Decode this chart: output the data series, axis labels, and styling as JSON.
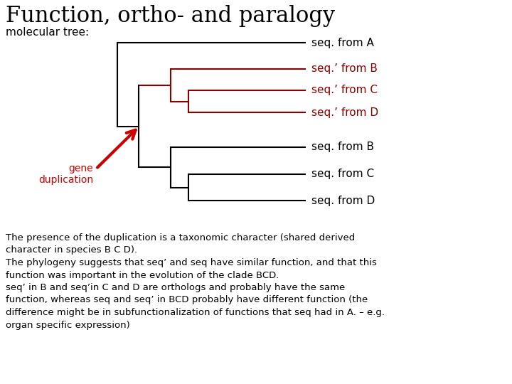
{
  "title": "Function, ortho- and paralogy",
  "subtitle": "molecular tree:",
  "background_color": "#ffffff",
  "title_fontsize": 22,
  "subtitle_fontsize": 11,
  "leaf_labels": [
    {
      "text": "seq. from A",
      "color": "#000000"
    },
    {
      "text": "seq.’ from B",
      "color": "#880000"
    },
    {
      "text": "seq.’ from C",
      "color": "#880000"
    },
    {
      "text": "seq.’ from D",
      "color": "#880000"
    },
    {
      "text": "seq. from B",
      "color": "#000000"
    },
    {
      "text": "seq. from C",
      "color": "#000000"
    },
    {
      "text": "seq. from D",
      "color": "#000000"
    }
  ],
  "body_text": "The presence of the duplication is a taxonomic character (shared derived\ncharacter in species B C D).\nThe phylogeny suggests that seq’ and seq have similar function, and that this\nfunction was important in the evolution of the clade BCD.\nseq’ in B and seq’in C and D are orthologs and probably have the same\nfunction, whereas seq and seq’ in BCD probably have different function (the\ndifference might be in subfunctionalization of functions that seq had in A. – e.g.\norgan specific expression)",
  "body_fontsize": 9.5,
  "black_color": "#000000",
  "red_color": "#880000",
  "arrow_red": "#cc0000",
  "gene_dup_label": "gene\nduplication",
  "gene_dup_color": "#cc0000",
  "leaf_label_fontsize": 11,
  "lw": 1.5
}
